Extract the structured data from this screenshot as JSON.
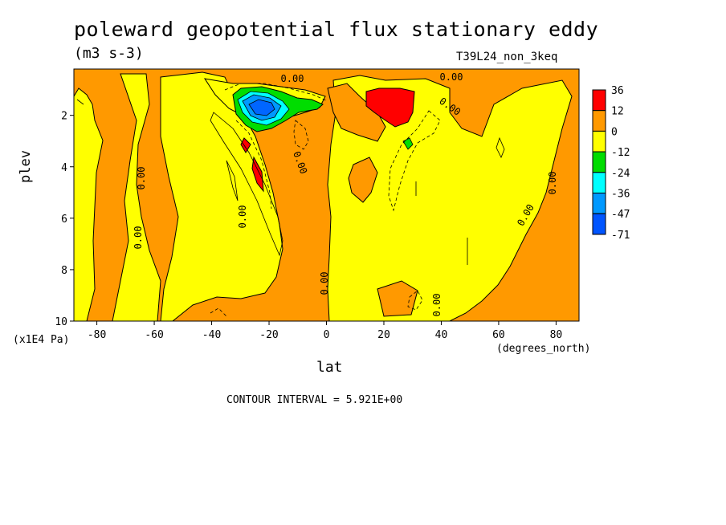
{
  "chart_data": {
    "type": "heatmap",
    "title": "poleward geopotential flux stationary eddy",
    "units": "(m3 s-3)",
    "run_label": "T39L24_non_3keq",
    "xlabel": "lat",
    "x_units": "(degrees_north)",
    "ylabel": "plev",
    "y_units": "(x1E4 Pa)",
    "x_ticks": [
      "-80",
      "-60",
      "-40",
      "-20",
      "0",
      "20",
      "40",
      "60",
      "80"
    ],
    "y_ticks": [
      "2",
      "4",
      "6",
      "8",
      "10"
    ],
    "xlim": [
      -88,
      88
    ],
    "ylim": [
      10,
      0.2
    ],
    "contour_interval_text": "CONTOUR INTERVAL = 5.921E+00",
    "contour_labels": [
      "0.00",
      "0.00",
      "0.00",
      "0.00",
      "0.00",
      "0.00",
      "0.00",
      "0.00",
      "0.00",
      "0.00",
      "0.00"
    ],
    "legend": [
      {
        "label": "36",
        "color": "#ff0000"
      },
      {
        "label": "12",
        "color": "#ff9900"
      },
      {
        "label": "0",
        "color": "#ffff00"
      },
      {
        "label": "-12",
        "color": "#00dd00"
      },
      {
        "label": "-24",
        "color": "#00ffff"
      },
      {
        "label": "-36",
        "color": "#0099ff"
      },
      {
        "label": "-47",
        "color": "#0066ff"
      },
      {
        "label": "-71",
        "color": ""
      }
    ],
    "features": [
      {
        "name": "negative-core",
        "lat": -25,
        "plev": 1.8,
        "min_value": -71
      },
      {
        "name": "positive-core",
        "lat": 24,
        "plev": 1.5,
        "max_value": 36
      }
    ]
  }
}
